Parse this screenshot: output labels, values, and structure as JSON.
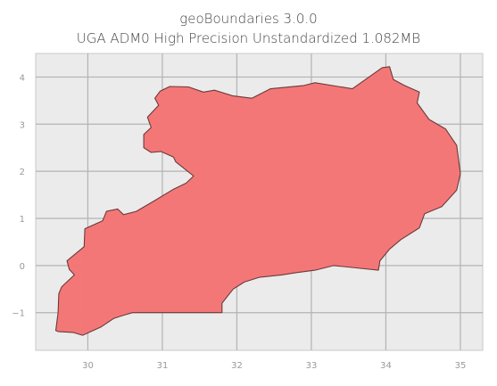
{
  "figure": {
    "title_line1": "geoBoundaries 3.0.0",
    "title_line2": "UGA ADM0 High Precision Unstandardized 1.082MB"
  },
  "chart_data": {
    "type": "map",
    "title": "geoBoundaries 3.0.0 UGA ADM0 High Precision Unstandardized 1.082MB",
    "xlim": [
      29.3,
      35.3
    ],
    "ylim": [
      -1.8,
      4.5
    ],
    "x_ticks": [
      30,
      31,
      32,
      33,
      34,
      35
    ],
    "y_ticks": [
      4,
      3,
      2,
      1,
      0,
      -1
    ],
    "x_tick_labels": [
      "30",
      "31",
      "32",
      "33",
      "34",
      "35"
    ],
    "y_tick_labels": [
      "4",
      "3",
      "2",
      "1",
      "0",
      "−1"
    ],
    "grid": true,
    "colors": {
      "fill": "#f47474",
      "edge": "#6b3a3a",
      "background": "#ebebeb",
      "grid": "#b3b3b3"
    },
    "outline": [
      [
        29.57,
        -1.38
      ],
      [
        29.6,
        -1.0
      ],
      [
        29.61,
        -0.6
      ],
      [
        29.65,
        -0.45
      ],
      [
        29.82,
        -0.2
      ],
      [
        29.75,
        -0.08
      ],
      [
        29.72,
        0.1
      ],
      [
        29.95,
        0.4
      ],
      [
        29.96,
        0.78
      ],
      [
        30.2,
        0.95
      ],
      [
        30.25,
        1.15
      ],
      [
        30.4,
        1.2
      ],
      [
        30.48,
        1.08
      ],
      [
        30.65,
        1.15
      ],
      [
        30.9,
        1.38
      ],
      [
        31.15,
        1.62
      ],
      [
        31.32,
        1.75
      ],
      [
        31.42,
        1.9
      ],
      [
        31.18,
        2.2
      ],
      [
        31.15,
        2.3
      ],
      [
        30.98,
        2.42
      ],
      [
        30.85,
        2.4
      ],
      [
        30.75,
        2.5
      ],
      [
        30.75,
        2.78
      ],
      [
        30.85,
        2.93
      ],
      [
        30.8,
        3.15
      ],
      [
        30.95,
        3.4
      ],
      [
        30.9,
        3.55
      ],
      [
        30.97,
        3.7
      ],
      [
        31.1,
        3.8
      ],
      [
        31.35,
        3.79
      ],
      [
        31.55,
        3.68
      ],
      [
        31.7,
        3.72
      ],
      [
        31.95,
        3.6
      ],
      [
        32.2,
        3.55
      ],
      [
        32.45,
        3.75
      ],
      [
        32.9,
        3.82
      ],
      [
        33.05,
        3.88
      ],
      [
        33.55,
        3.75
      ],
      [
        33.95,
        4.2
      ],
      [
        34.05,
        4.22
      ],
      [
        34.1,
        3.95
      ],
      [
        34.25,
        3.82
      ],
      [
        34.45,
        3.68
      ],
      [
        34.42,
        3.45
      ],
      [
        34.58,
        3.1
      ],
      [
        34.8,
        2.9
      ],
      [
        34.95,
        2.55
      ],
      [
        35.0,
        1.95
      ],
      [
        34.95,
        1.6
      ],
      [
        34.75,
        1.25
      ],
      [
        34.52,
        1.1
      ],
      [
        34.45,
        0.8
      ],
      [
        34.2,
        0.55
      ],
      [
        34.05,
        0.35
      ],
      [
        33.92,
        0.1
      ],
      [
        33.9,
        -0.1
      ],
      [
        33.6,
        -0.05
      ],
      [
        33.3,
        0.0
      ],
      [
        33.05,
        -0.1
      ],
      [
        32.8,
        -0.15
      ],
      [
        32.6,
        -0.2
      ],
      [
        32.3,
        -0.25
      ],
      [
        32.1,
        -0.35
      ],
      [
        31.95,
        -0.5
      ],
      [
        31.8,
        -0.8
      ],
      [
        31.8,
        -1.0
      ],
      [
        30.8,
        -1.0
      ],
      [
        30.6,
        -1.0
      ],
      [
        30.47,
        -1.06
      ],
      [
        30.35,
        -1.12
      ],
      [
        30.18,
        -1.3
      ],
      [
        29.93,
        -1.48
      ],
      [
        29.8,
        -1.42
      ],
      [
        29.6,
        -1.4
      ]
    ]
  }
}
